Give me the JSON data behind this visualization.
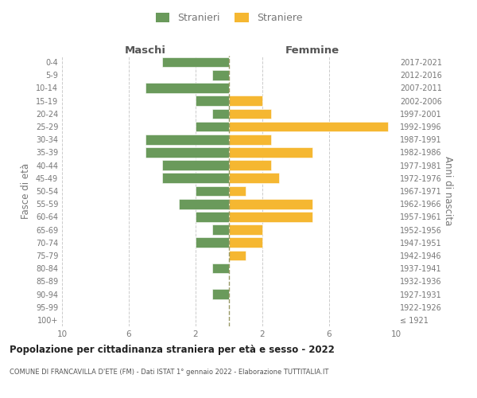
{
  "age_groups": [
    "100+",
    "95-99",
    "90-94",
    "85-89",
    "80-84",
    "75-79",
    "70-74",
    "65-69",
    "60-64",
    "55-59",
    "50-54",
    "45-49",
    "40-44",
    "35-39",
    "30-34",
    "25-29",
    "20-24",
    "15-19",
    "10-14",
    "5-9",
    "0-4"
  ],
  "birth_years": [
    "≤ 1921",
    "1922-1926",
    "1927-1931",
    "1932-1936",
    "1937-1941",
    "1942-1946",
    "1947-1951",
    "1952-1956",
    "1957-1961",
    "1962-1966",
    "1967-1971",
    "1972-1976",
    "1977-1981",
    "1982-1986",
    "1987-1991",
    "1992-1996",
    "1997-2001",
    "2002-2006",
    "2007-2011",
    "2012-2016",
    "2017-2021"
  ],
  "maschi": [
    0,
    0,
    1,
    0,
    1,
    0,
    2,
    1,
    2,
    3,
    2,
    4,
    4,
    5,
    5,
    2,
    1,
    2,
    5,
    1,
    4
  ],
  "femmine": [
    0,
    0,
    0,
    0,
    0,
    1,
    2,
    2,
    5,
    5,
    1,
    3,
    2.5,
    5,
    2.5,
    9.5,
    2.5,
    2,
    0,
    0,
    0
  ],
  "color_maschi": "#6a9a5b",
  "color_femmine": "#f5b731",
  "xlim": 10,
  "xticks": [
    10,
    6,
    2,
    2,
    6,
    10
  ],
  "title": "Popolazione per cittadinanza straniera per età e sesso - 2022",
  "subtitle": "COMUNE DI FRANCAVILLA D'ETE (FM) - Dati ISTAT 1° gennaio 2022 - Elaborazione TUTTITALIA.IT",
  "ylabel_left": "Fasce di età",
  "ylabel_right": "Anni di nascita",
  "legend_maschi": "Stranieri",
  "legend_femmine": "Straniere",
  "bg_color": "#ffffff",
  "grid_color": "#cccccc",
  "label_color": "#777777",
  "title_color": "#222222",
  "subtitle_color": "#555555",
  "header_color": "#555555"
}
